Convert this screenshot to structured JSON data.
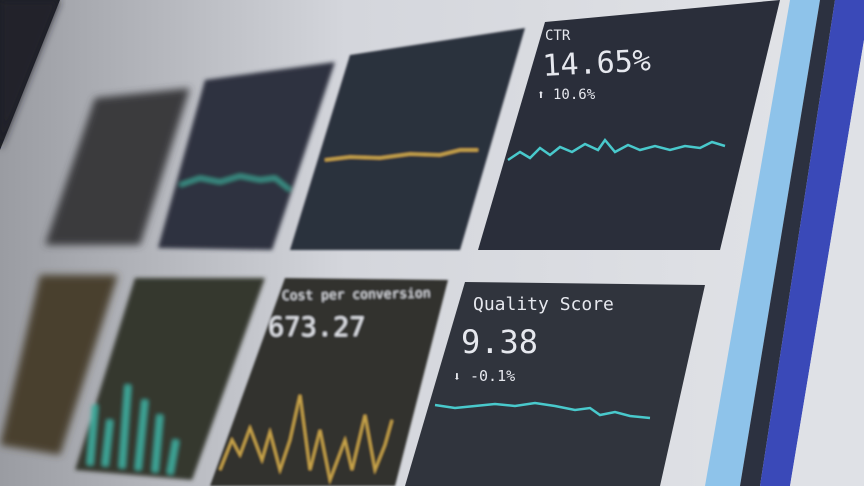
{
  "colors": {
    "screen_bg": "#d6d8de",
    "panel_dark": "#2b2f3a",
    "cyan_line": "#49c9cc",
    "gold_line": "#c9a44a",
    "teal_line": "#3ea89a",
    "accent_blue": "#3a49b8",
    "light_blue": "#8ec3ea"
  },
  "panels": {
    "ctr": {
      "label": "CTR",
      "value": "14.65%",
      "change": "10.6%",
      "change_icon": "arrow-up-icon",
      "arrow": "⬆"
    },
    "quality_score": {
      "label": "Quality Score",
      "value": "9.38",
      "change": "-0.1%",
      "change_icon": "arrow-down-icon",
      "arrow": "⬇"
    },
    "cost_per_conversion": {
      "label": "Cost per conversion",
      "value": "673.27"
    }
  }
}
